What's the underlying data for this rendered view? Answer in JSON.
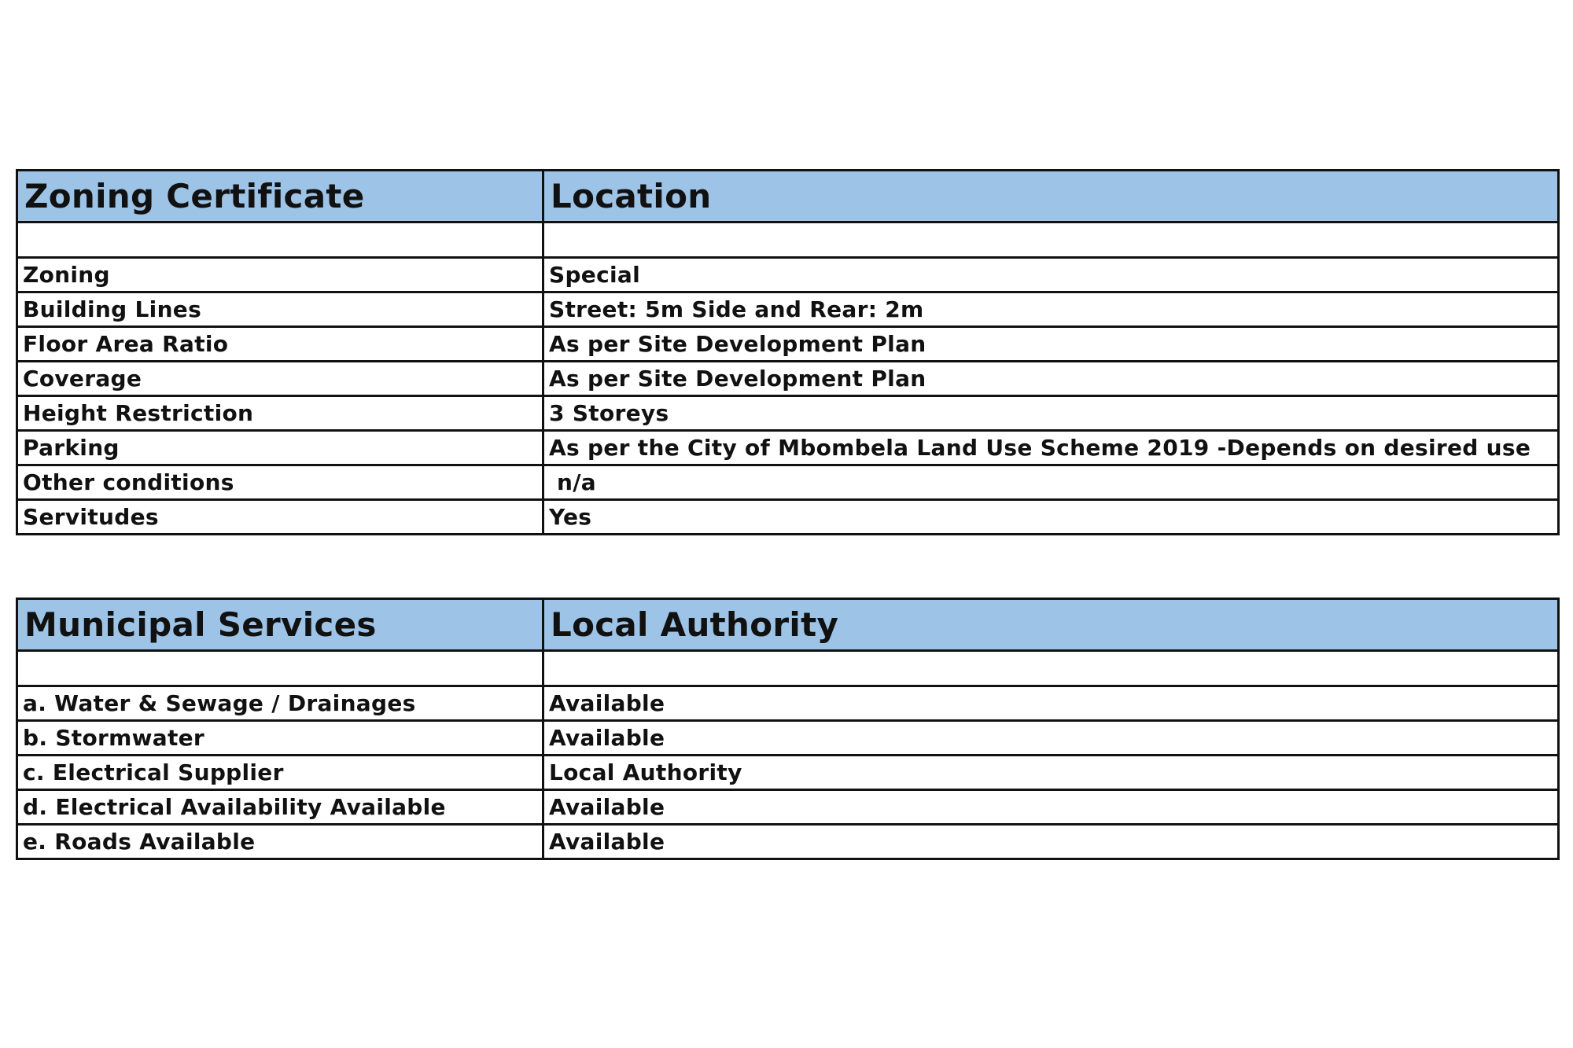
{
  "zoning": {
    "header": [
      "Zoning Certificate",
      "Location"
    ],
    "rows": [
      [
        "Zoning",
        "Special"
      ],
      [
        "Building Lines",
        "Street: 5m Side and Rear: 2m"
      ],
      [
        "Floor Area Ratio",
        "As per Site Development Plan"
      ],
      [
        "Coverage",
        "As per Site Development Plan"
      ],
      [
        "Height Restriction",
        "3 Storeys"
      ],
      [
        "Parking",
        "As per the City of Mbombela Land Use Scheme 2019 -Depends on desired use"
      ],
      [
        "Other conditions",
        " n/a"
      ],
      [
        "Servitudes",
        "Yes"
      ]
    ]
  },
  "services": {
    "header": [
      "Municipal Services",
      "Local Authority"
    ],
    "rows": [
      [
        "a. Water & Sewage / Drainages",
        "Available"
      ],
      [
        "b. Stormwater",
        "Available"
      ],
      [
        "c. Electrical Supplier",
        "Local Authority"
      ],
      [
        "d. Electrical Availability Available",
        "Available"
      ],
      [
        "e. Roads Available",
        "Available"
      ]
    ]
  },
  "colors": {
    "header_fill": "#9dc3e6"
  }
}
